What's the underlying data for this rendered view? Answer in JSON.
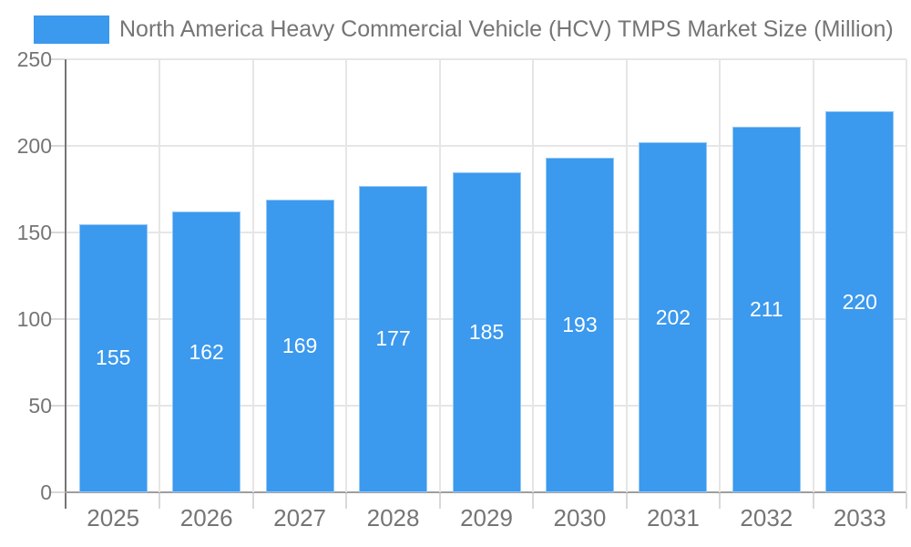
{
  "legend": {
    "label": "North America Heavy Commercial Vehicle (HCV) TMPS Market Size (Million)"
  },
  "colors": {
    "bar": "#3B99EE",
    "axis_text": "#757575",
    "value_label_text": "#FFFFFF",
    "grid_line": "#E6E6E6",
    "y_axis_line": "#757575",
    "x_axis_line": "#9E9E9E",
    "tick_mark": "#D9D9D9"
  },
  "chart_data": {
    "type": "bar",
    "title": "North America Heavy Commercial Vehicle (HCV) TMPS Market Size (Million)",
    "categories": [
      "2025",
      "2026",
      "2027",
      "2028",
      "2029",
      "2030",
      "2031",
      "2032",
      "2033"
    ],
    "values": [
      155,
      162,
      169,
      177,
      185,
      193,
      202,
      211,
      220
    ],
    "xlabel": "",
    "ylabel": "",
    "ylim": [
      0,
      250
    ],
    "ytick_step": 50,
    "yticks": [
      0,
      50,
      100,
      150,
      200,
      250
    ],
    "grid": true,
    "legend_position": "top-left",
    "value_labels": "centered-inside-bars-white"
  }
}
